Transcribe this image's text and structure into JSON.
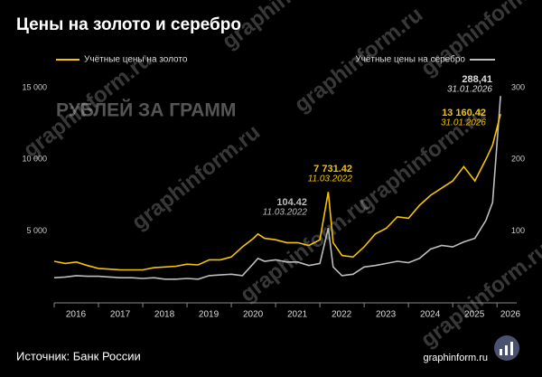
{
  "chart_data": {
    "type": "line",
    "title": "Цены на золото и серебро",
    "y_label": "РУБЛЕЙ ЗА ГРАММ",
    "source": "Источник: Банк России",
    "brand": "graphinform.ru",
    "watermark": "graphinform.ru",
    "xlim": [
      2016,
      2026.2
    ],
    "xticks": [
      2016,
      2017,
      2018,
      2019,
      2020,
      2021,
      2022,
      2023,
      2024,
      2025,
      2026
    ],
    "ylim": [
      0,
      15000
    ],
    "yticks": [
      {
        "value": 5000,
        "label": "5 000"
      },
      {
        "value": 10000,
        "label": "10 000"
      },
      {
        "value": 15000,
        "label": "15 000"
      }
    ],
    "y2lim": [
      0,
      300
    ],
    "y2ticks": [
      100,
      200,
      300
    ],
    "x": [
      2016.0,
      2016.25,
      2016.5,
      2016.75,
      2017.0,
      2017.25,
      2017.5,
      2017.75,
      2018.0,
      2018.25,
      2018.5,
      2018.75,
      2019.0,
      2019.25,
      2019.5,
      2019.75,
      2020.0,
      2020.25,
      2020.5,
      2020.6,
      2020.75,
      2021.0,
      2021.25,
      2021.5,
      2021.75,
      2022.0,
      2022.19,
      2022.3,
      2022.5,
      2022.75,
      2023.0,
      2023.25,
      2023.5,
      2023.75,
      2024.0,
      2024.25,
      2024.5,
      2024.75,
      2025.0,
      2025.25,
      2025.5,
      2025.75,
      2025.9,
      2026.08
    ],
    "series": [
      {
        "name": "Учётные цены на золото",
        "color": "#f5c400",
        "axis": "y",
        "values": [
          2900,
          2750,
          2850,
          2600,
          2400,
          2350,
          2300,
          2300,
          2300,
          2450,
          2500,
          2550,
          2700,
          2650,
          3000,
          3000,
          3200,
          3900,
          4500,
          4800,
          4500,
          4400,
          4200,
          4200,
          4000,
          4400,
          7731.42,
          4200,
          3300,
          3200,
          3900,
          4800,
          5200,
          6000,
          5900,
          6800,
          7500,
          8000,
          8500,
          9500,
          8500,
          10000,
          11000,
          13160.42
        ]
      },
      {
        "name": "Учётные цены на серебро",
        "color": "#bdbdbd",
        "axis": "y2",
        "values": [
          35,
          36,
          38,
          37,
          37,
          36,
          35,
          35,
          34,
          35,
          33,
          33,
          34,
          33,
          38,
          39,
          40,
          38,
          55,
          62,
          58,
          60,
          57,
          57,
          52,
          55,
          104.42,
          50,
          38,
          40,
          50,
          52,
          55,
          58,
          56,
          62,
          75,
          80,
          78,
          85,
          90,
          115,
          140,
          288.41
        ]
      }
    ],
    "annotations": [
      {
        "value_label": "7 731.42",
        "date": "11.03.2022"
      },
      {
        "value_label": "104.42",
        "date": "11.03.2022"
      },
      {
        "value_label": "13 160.42",
        "date": "31.01.2026"
      },
      {
        "value_label": "288,41",
        "date": "31.01.2026"
      }
    ]
  }
}
